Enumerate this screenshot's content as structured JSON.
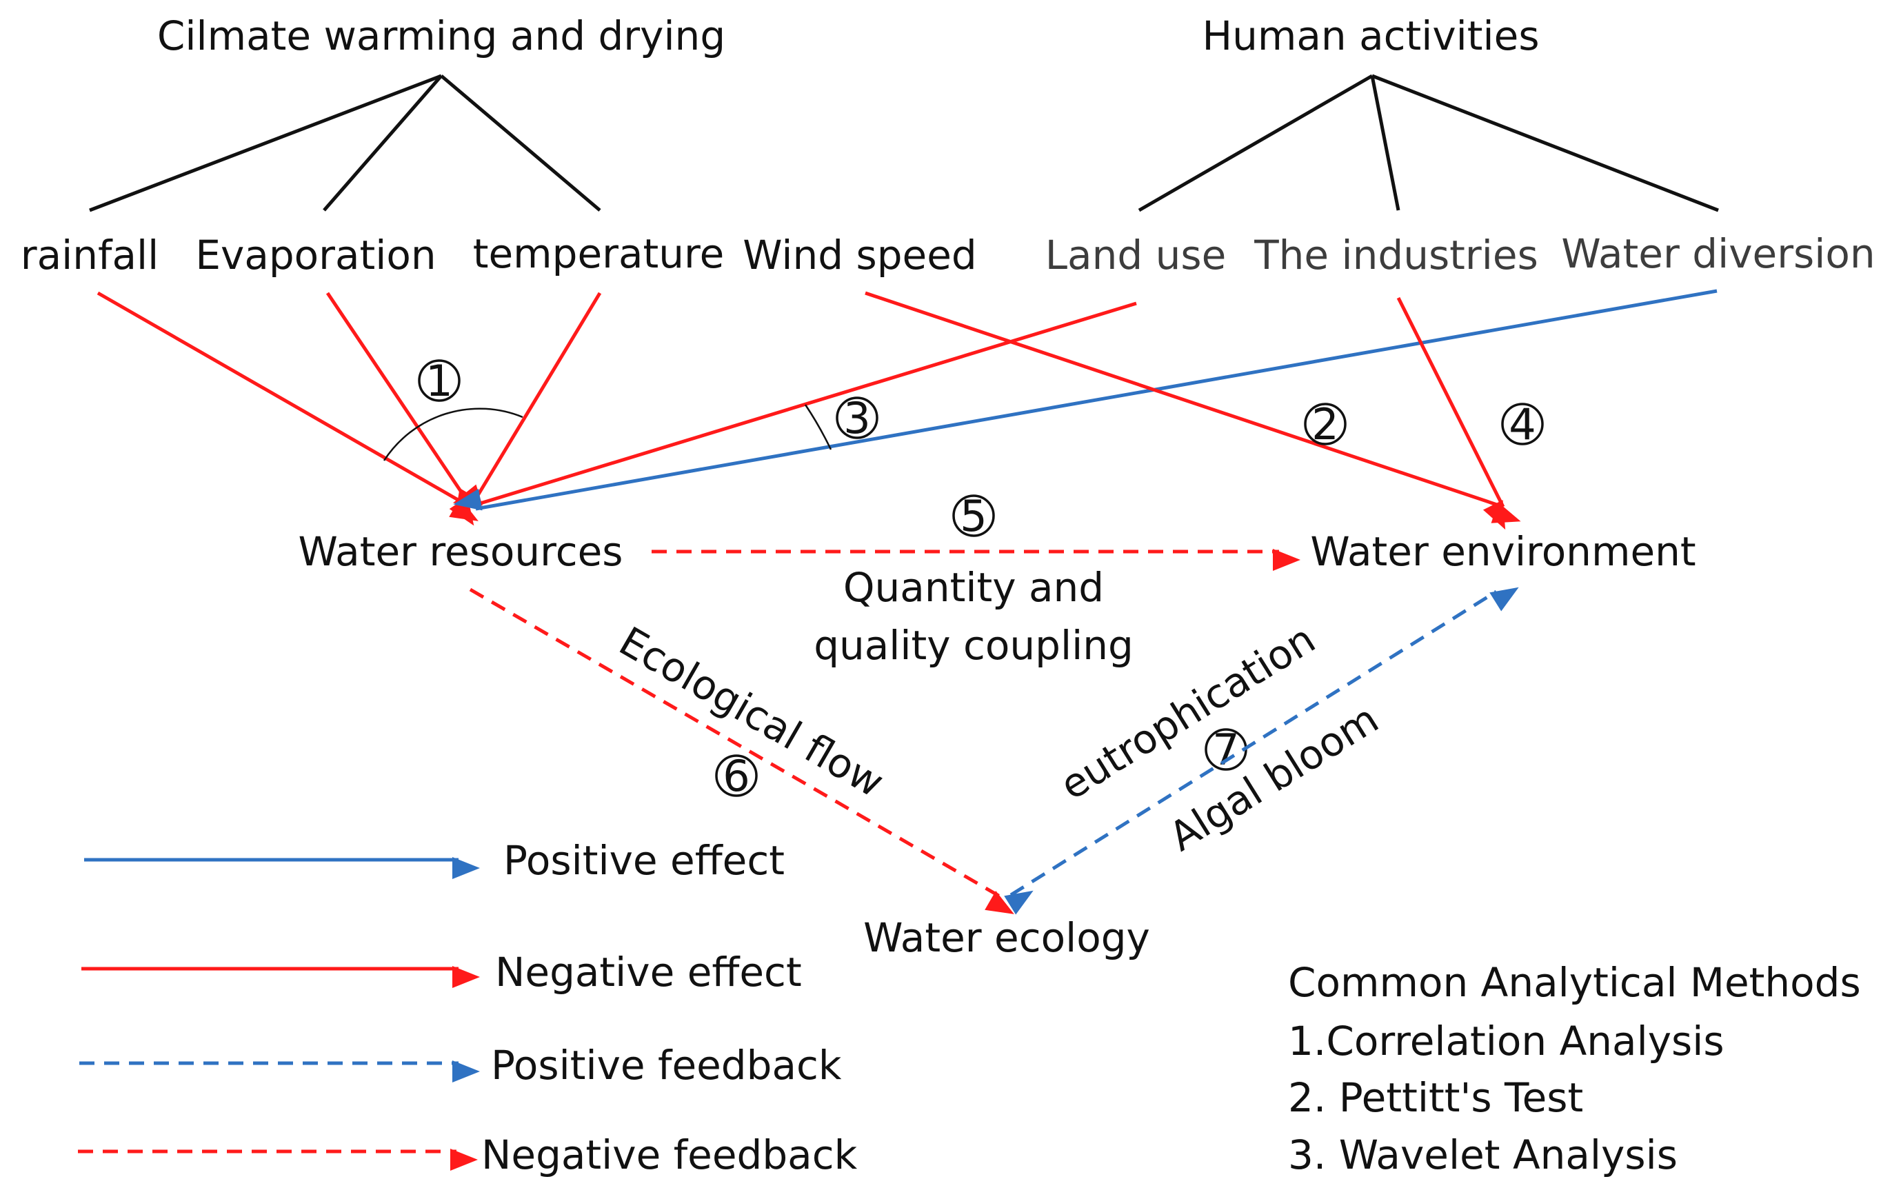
{
  "groups": {
    "climate": "Cilmate warming and drying",
    "human": "Human activities"
  },
  "factors": {
    "rainfall": "rainfall",
    "evaporation": "Evaporation",
    "temperature": "temperature",
    "wind_speed": "Wind speed",
    "land_use": "Land use",
    "industries": "The industries",
    "water_diversion": "Water diversion"
  },
  "nodes": {
    "water_resources": "Water resources",
    "water_environment": "Water environment",
    "water_ecology": "Water ecology"
  },
  "markers": {
    "m1": "1",
    "m2": "2",
    "m3": "3",
    "m4": "4",
    "m5": "5",
    "m6": "6",
    "m7": "7"
  },
  "link_labels": {
    "coupling_line1": "Quantity and",
    "coupling_line2": "quality coupling",
    "ecological_flow": "Ecological flow",
    "eutrophication": "eutrophication",
    "algal_bloom": "Algal bloom"
  },
  "legend": {
    "positive_effect": "Positive effect",
    "negative_effect": "Negative effect",
    "positive_feedback": "Positive feedback",
    "negative_feedback": "Negative feedback"
  },
  "methods": {
    "title": "Common Analytical Methods",
    "items": [
      "1.Correlation Analysis",
      "2. Pettitt's Test",
      "3. Wavelet Analysis"
    ]
  },
  "colors": {
    "positive": "#2f72c2",
    "negative": "#ff1a1a"
  }
}
